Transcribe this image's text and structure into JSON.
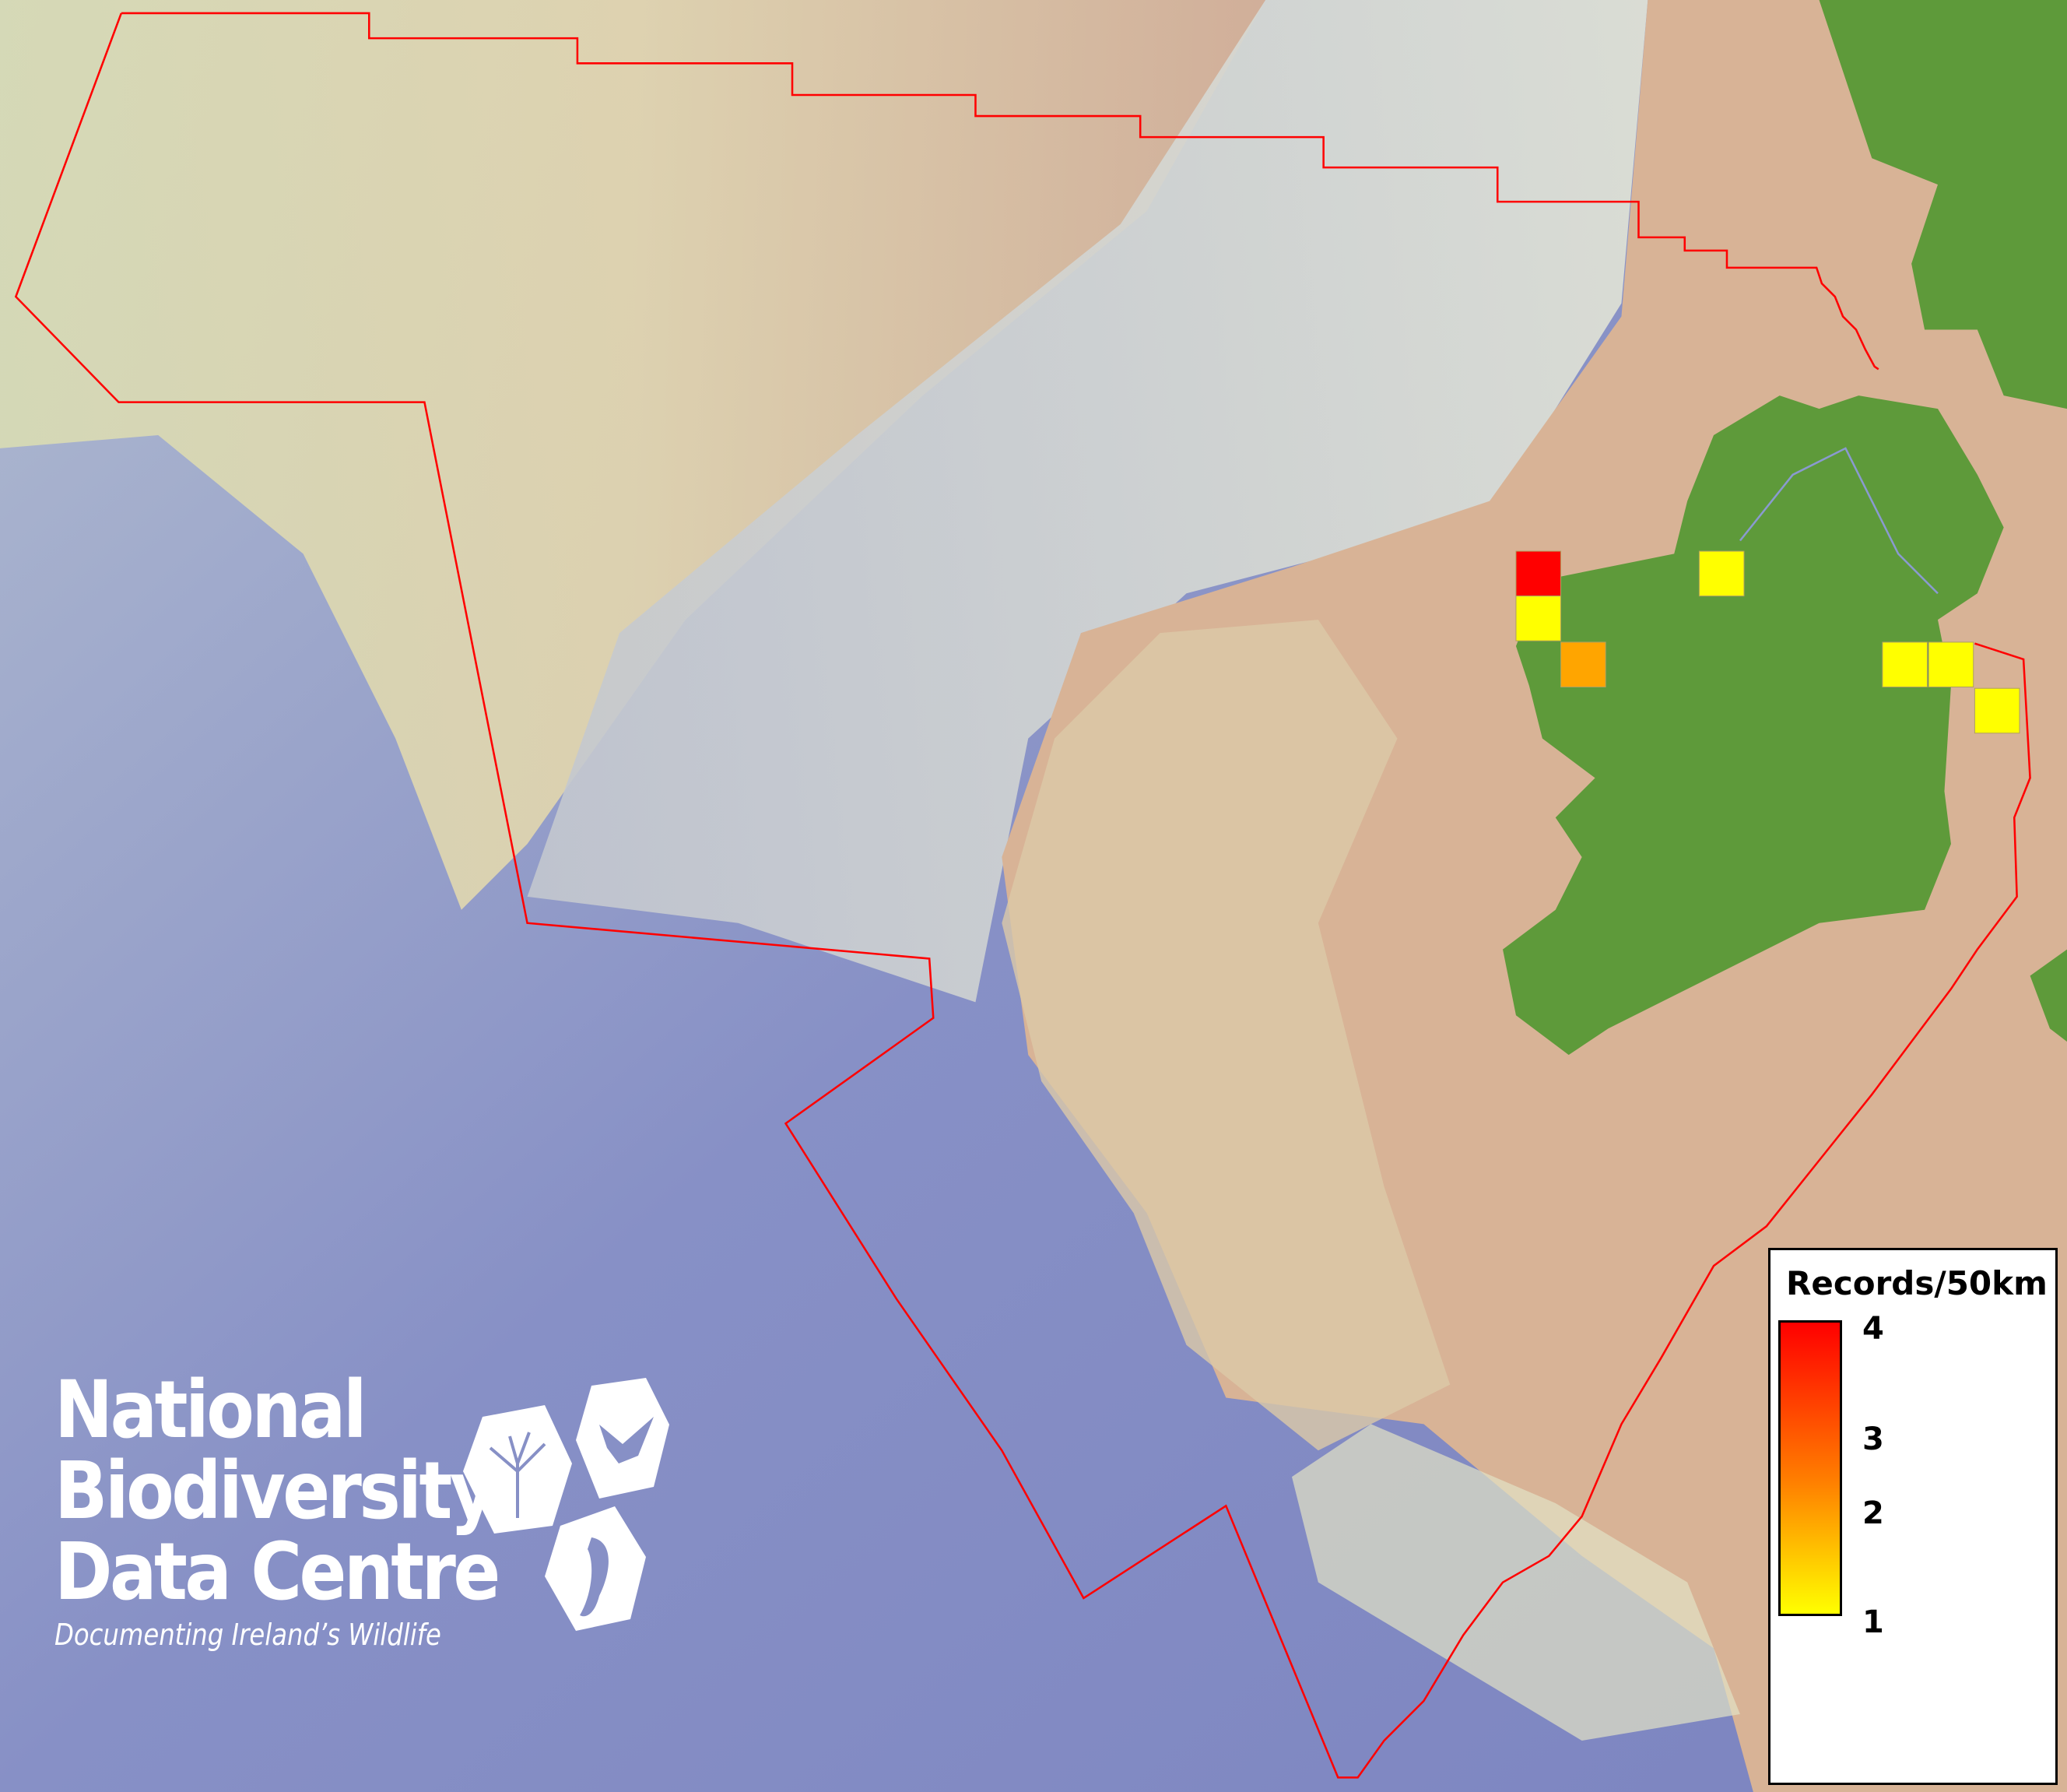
{
  "map": {
    "boundary_color": "#ff0000",
    "land_color": "#5e9a3a",
    "grid_cells": [
      {
        "value": 4,
        "color": "#ff0000"
      },
      {
        "value": 1,
        "color": "#ffff00"
      },
      {
        "value": 2,
        "color": "#ffa500"
      },
      {
        "value": 1,
        "color": "#ffff00"
      },
      {
        "value": 1,
        "color": "#ffff00"
      },
      {
        "value": 1,
        "color": "#ffff00"
      },
      {
        "value": 1,
        "color": "#ffff00"
      }
    ]
  },
  "legend": {
    "title": "Records/50km",
    "min": 1,
    "max": 4,
    "ticks": [
      "4",
      "3",
      "2",
      "1"
    ],
    "color_low": "#ffff00",
    "color_high": "#ff0000"
  },
  "logo": {
    "line1": "National",
    "line2": "Biodiversity",
    "line3": "Data Centre",
    "tagline": "Documenting Ireland’s Wildlife",
    "icons": [
      "plant-icon",
      "butterfly-icon",
      "seahorse-icon"
    ]
  }
}
